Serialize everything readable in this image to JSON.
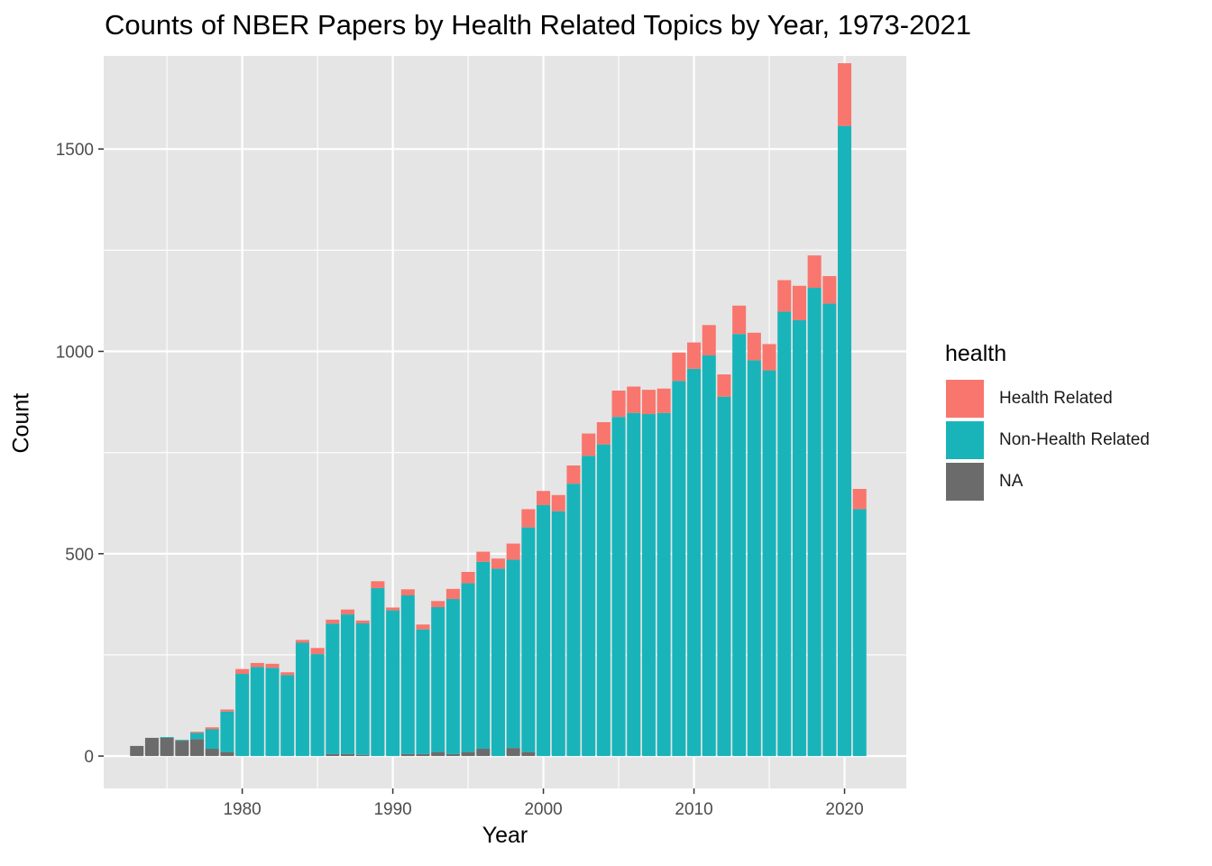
{
  "chart_data": {
    "type": "bar",
    "stacked": true,
    "title": "Counts of NBER Papers by Health Related Topics by Year, 1973-2021",
    "xlabel": "Year",
    "ylabel": "Count",
    "xlim": [
      1970.8,
      2024.1
    ],
    "ylim": [
      -80,
      1730
    ],
    "x_ticks": [
      1980,
      1990,
      2000,
      2010,
      2020
    ],
    "y_ticks": [
      0,
      500,
      1000,
      1500
    ],
    "grid": true,
    "legend": {
      "title": "health",
      "position": "right"
    },
    "colors": {
      "Health Related": "#f8766d",
      "Non-Health Related": "#19b4b9",
      "NA": "#6b6b6b",
      "panel": "#e5e5e5",
      "grid": "#ffffff"
    },
    "categories": [
      1973,
      1974,
      1975,
      1976,
      1977,
      1978,
      1979,
      1980,
      1981,
      1982,
      1983,
      1984,
      1985,
      1986,
      1987,
      1988,
      1989,
      1990,
      1991,
      1992,
      1993,
      1994,
      1995,
      1996,
      1997,
      1998,
      1999,
      2000,
      2001,
      2002,
      2003,
      2004,
      2005,
      2006,
      2007,
      2008,
      2009,
      2010,
      2011,
      2012,
      2013,
      2014,
      2015,
      2016,
      2017,
      2018,
      2019,
      2020,
      2021
    ],
    "series": [
      {
        "name": "NA",
        "values": [
          25,
          45,
          45,
          38,
          42,
          18,
          10,
          0,
          0,
          0,
          0,
          0,
          0,
          5,
          5,
          3,
          0,
          0,
          5,
          5,
          10,
          5,
          10,
          18,
          0,
          20,
          10,
          0,
          0,
          0,
          0,
          0,
          0,
          0,
          0,
          0,
          0,
          0,
          0,
          0,
          0,
          0,
          0,
          0,
          0,
          0,
          0,
          0,
          0
        ]
      },
      {
        "name": "Non-Health Related",
        "values": [
          0,
          0,
          2,
          2,
          15,
          48,
          100,
          203,
          220,
          218,
          200,
          280,
          252,
          322,
          345,
          325,
          415,
          360,
          392,
          308,
          358,
          383,
          417,
          462,
          463,
          465,
          555,
          620,
          605,
          673,
          742,
          770,
          838,
          848,
          845,
          848,
          927,
          957,
          990,
          888,
          1043,
          978,
          953,
          1098,
          1077,
          1157,
          1118,
          1557,
          610
        ]
      },
      {
        "name": "Health Related",
        "values": [
          0,
          0,
          0,
          0,
          3,
          5,
          5,
          12,
          10,
          10,
          7,
          7,
          15,
          10,
          12,
          7,
          17,
          7,
          15,
          12,
          15,
          25,
          28,
          25,
          25,
          40,
          45,
          35,
          40,
          45,
          55,
          55,
          65,
          65,
          60,
          60,
          70,
          65,
          75,
          55,
          70,
          68,
          65,
          78,
          85,
          80,
          68,
          155,
          50
        ]
      }
    ]
  }
}
